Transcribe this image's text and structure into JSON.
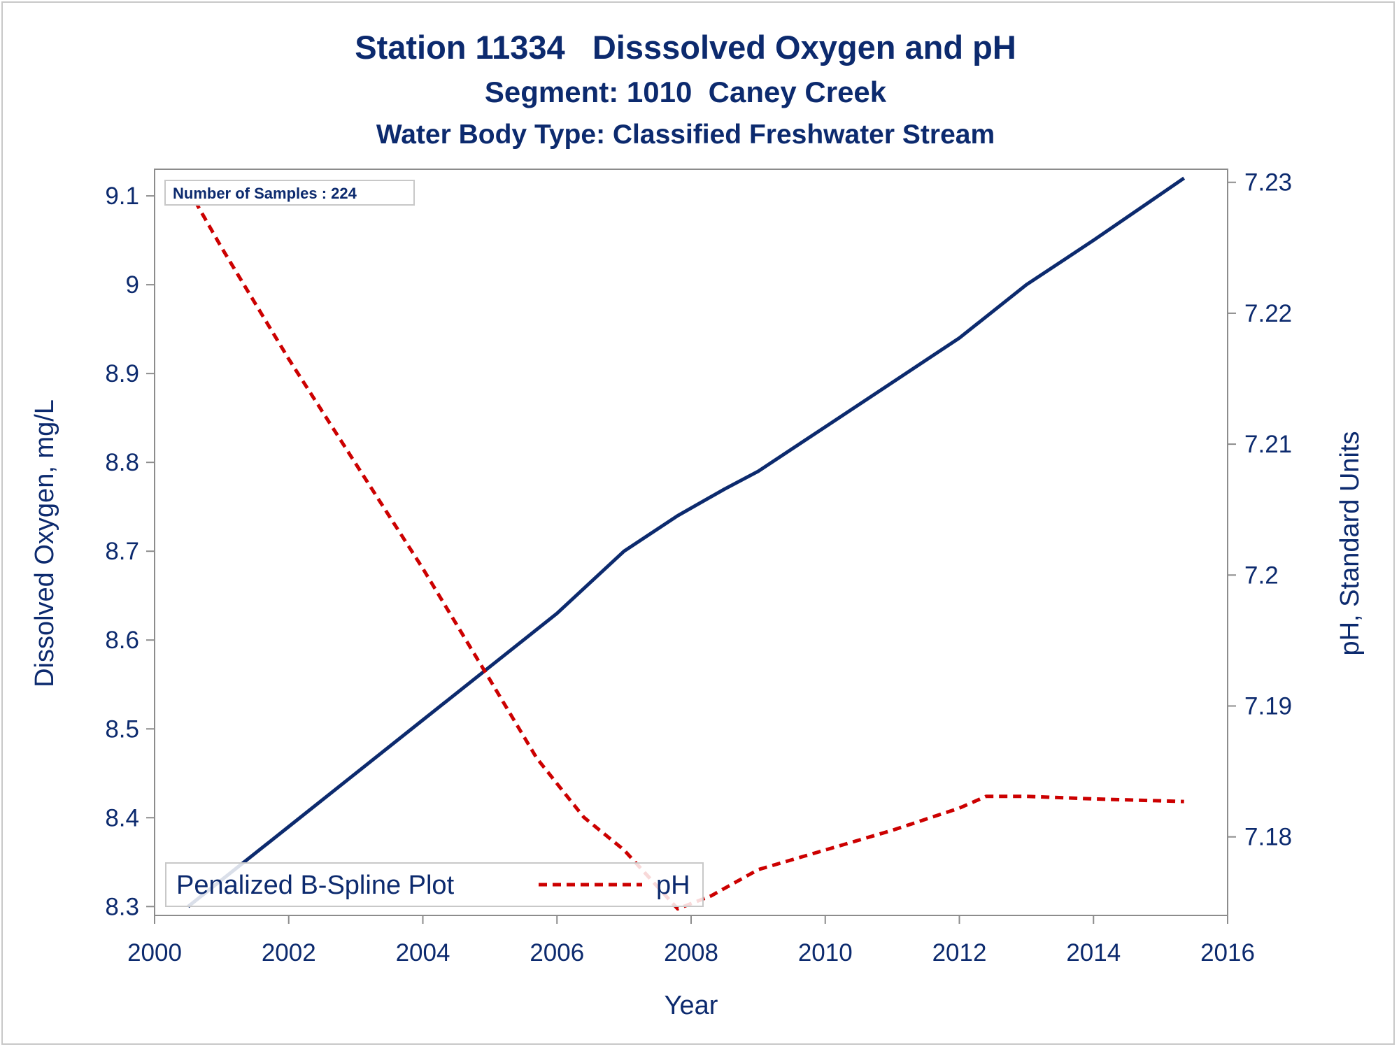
{
  "chart_data": {
    "type": "line",
    "title": "Station 11334   Disssolved Oxygen and pH",
    "subtitle": "Segment: 1010  Caney Creek",
    "subtitle2": "Water Body Type: Classified Freshwater Stream",
    "xlabel": "Year",
    "ylabel": "Dissolved Oxygen, mg/L",
    "y2label": "pH, Standard Units",
    "xlim": [
      2000,
      2016
    ],
    "ylim": [
      8.29,
      9.13
    ],
    "y2lim": [
      7.174,
      7.231
    ],
    "x_ticks": [
      "2000",
      "2002",
      "2004",
      "2006",
      "2008",
      "2010",
      "2012",
      "2014",
      "2016"
    ],
    "y_ticks": [
      "8.3",
      "8.4",
      "8.5",
      "8.6",
      "8.7",
      "8.8",
      "8.9",
      "9",
      "9.1"
    ],
    "y2_ticks": [
      "7.18",
      "7.19",
      "7.2",
      "7.21",
      "7.22",
      "7.23"
    ],
    "inset_label": "Number of Samples : 224",
    "legend": {
      "title": "Penalized B-Spline Plot",
      "entries": [
        {
          "label": "pH",
          "color": "#cc0000",
          "style": "dashed"
        }
      ],
      "placement": "bottom-left"
    },
    "series": [
      {
        "axis": "left",
        "color": "#0c2a6e",
        "style": "solid",
        "x": [
          2000.5,
          2001.0,
          2002.0,
          2003.0,
          2004.0,
          2005.0,
          2006.0,
          2007.0,
          2007.8,
          2008.5,
          2009.0,
          2010.0,
          2011.0,
          2012.0,
          2013.0,
          2014.0,
          2015.35
        ],
        "values": [
          8.3,
          8.33,
          8.39,
          8.45,
          8.51,
          8.57,
          8.63,
          8.7,
          8.74,
          8.77,
          8.79,
          8.84,
          8.89,
          8.94,
          9.0,
          9.05,
          9.12
        ]
      },
      {
        "name": "pH",
        "axis": "right",
        "color": "#cc0000",
        "style": "dashed",
        "x": [
          2000.5,
          2001.0,
          2002.0,
          2003.0,
          2004.0,
          2005.0,
          2005.7,
          2006.4,
          2007.0,
          2007.8,
          2008.3,
          2009.0,
          2010.0,
          2011.0,
          2012.0,
          2012.4,
          2013.0,
          2014.0,
          2015.35
        ],
        "values": [
          7.2295,
          7.225,
          7.2165,
          7.2085,
          7.2005,
          7.192,
          7.186,
          7.1815,
          7.179,
          7.1745,
          7.1755,
          7.1775,
          7.179,
          7.1805,
          7.1822,
          7.1831,
          7.1831,
          7.1829,
          7.1827
        ]
      }
    ]
  }
}
